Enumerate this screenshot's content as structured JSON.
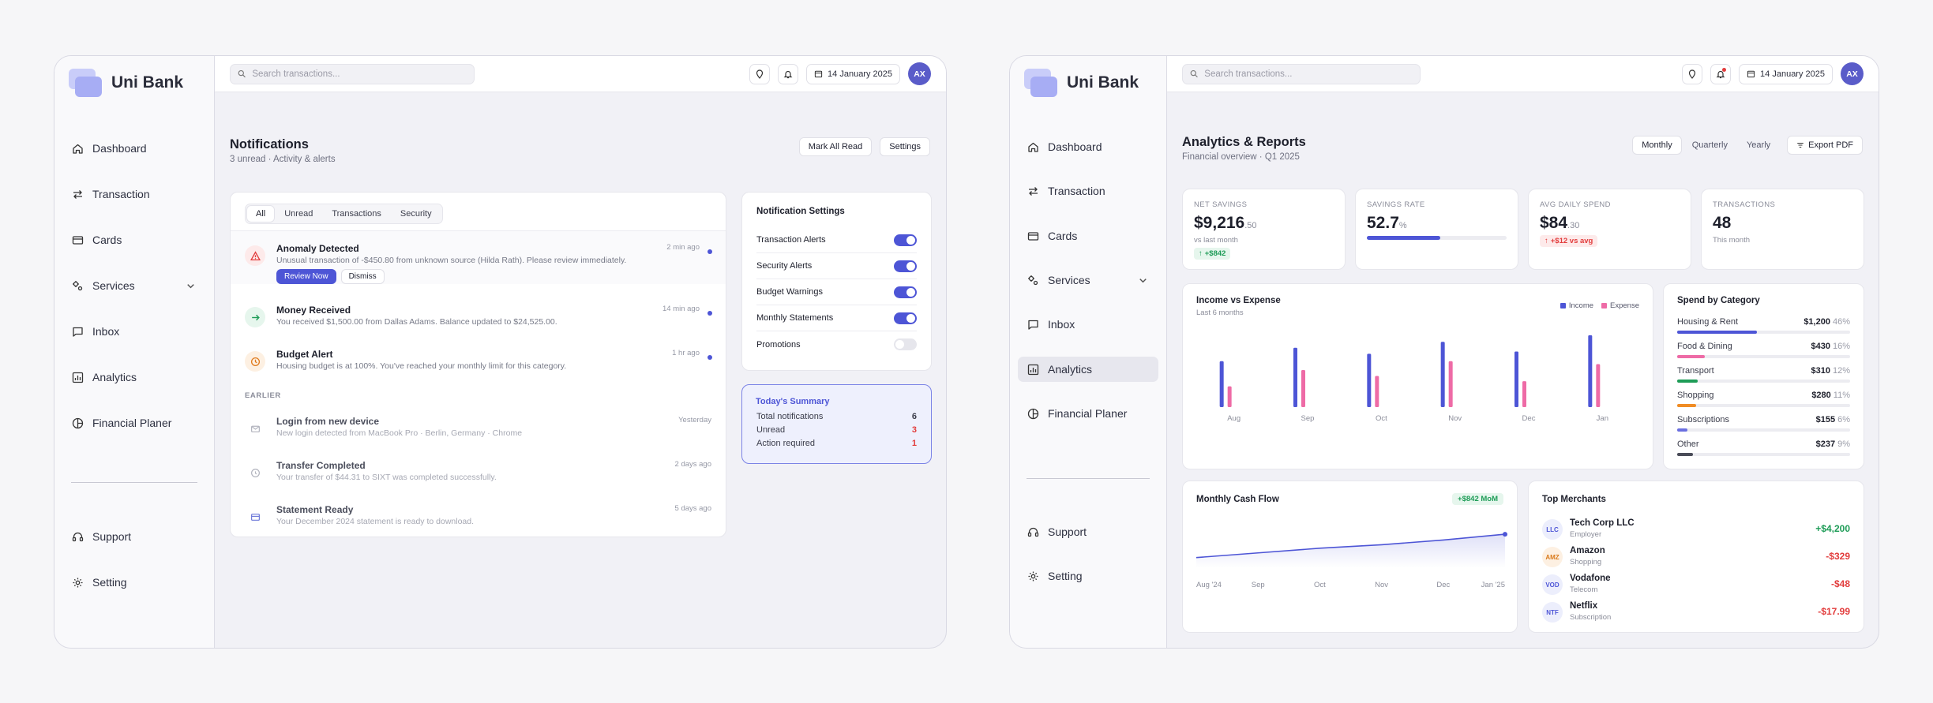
{
  "brand": "Uni Bank",
  "colors": {
    "accent": "#4d55d6",
    "income": "#4d55d6",
    "expense": "#ee6ba6",
    "positive": "#1e9c57",
    "negative": "#e23c3c"
  },
  "nav": [
    {
      "label": "Dashboard",
      "icon": "home-icon"
    },
    {
      "label": "Transaction",
      "icon": "transfer-icon"
    },
    {
      "label": "Cards",
      "icon": "card-icon"
    },
    {
      "label": "Services",
      "icon": "services-icon"
    },
    {
      "label": "Inbox",
      "icon": "inbox-icon"
    },
    {
      "label": "Analytics",
      "icon": "analytics-icon"
    },
    {
      "label": "Financial Planer",
      "icon": "pie-icon"
    }
  ],
  "footer_nav": [
    {
      "label": "Support",
      "icon": "headset-icon"
    },
    {
      "label": "Setting",
      "icon": "gear-icon"
    }
  ],
  "search": {
    "placeholder": "Search transactions..."
  },
  "date": "14 January 2025",
  "avatar": "AX",
  "notifications": {
    "title": "Notifications",
    "subtitle": "3 unread · Activity & alerts",
    "mark_all": "Mark All Read",
    "settings": "Settings",
    "tabs": [
      "All",
      "Unread",
      "Transactions",
      "Security"
    ],
    "items": [
      {
        "title": "Anomaly Detected",
        "desc": "Unusual transaction of -$450.80 from unknown source (Hilda Rath). Please review immediately.",
        "time": "2 min ago",
        "icon": "warning-icon"
      },
      {
        "title": "Money Received",
        "desc": "You received $1,500.00 from Dallas Adams. Balance updated to $24,525.00.",
        "time": "14 min ago",
        "icon": "arrow-right-icon"
      },
      {
        "title": "Budget Alert",
        "desc": "Housing budget is at 100%. You've reached your monthly limit for this category.",
        "time": "1 hr ago",
        "icon": "clock-icon"
      }
    ],
    "review": "Review Now",
    "dismiss": "Dismiss",
    "earlier_label": "EARLIER",
    "earlier": [
      {
        "title": "Login from new device",
        "desc": "New login detected from MacBook Pro · Berlin, Germany · Chrome",
        "time": "Yesterday",
        "icon": "mail-icon"
      },
      {
        "title": "Transfer Completed",
        "desc": "Your transfer of $44.31 to SIXT was completed successfully.",
        "time": "2 days ago",
        "icon": "check-circle-icon"
      },
      {
        "title": "Statement Ready",
        "desc": "Your December 2024 statement is ready to download.",
        "time": "5 days ago",
        "icon": "card-icon"
      }
    ],
    "settings_card": {
      "title": "Notification Settings",
      "rows": [
        {
          "label": "Transaction Alerts",
          "on": true
        },
        {
          "label": "Security Alerts",
          "on": true
        },
        {
          "label": "Budget Warnings",
          "on": true
        },
        {
          "label": "Monthly Statements",
          "on": true
        },
        {
          "label": "Promotions",
          "on": false
        }
      ]
    },
    "summary": {
      "title": "Today's Summary",
      "rows": [
        {
          "label": "Total notifications",
          "value": "6"
        },
        {
          "label": "Unread",
          "value": "3"
        },
        {
          "label": "Action required",
          "value": "1"
        }
      ]
    }
  },
  "analytics": {
    "title": "Analytics & Reports",
    "subtitle": "Financial overview · Q1 2025",
    "periods": [
      "Monthly",
      "Quarterly",
      "Yearly"
    ],
    "export": "Export PDF",
    "stats": [
      {
        "label": "NET SAVINGS",
        "value": "$9,216",
        "small": ".50",
        "note": "vs last month",
        "badge": "+$842"
      },
      {
        "label": "SAVINGS RATE",
        "value": "52.7",
        "small": "%",
        "progress": 0.527
      },
      {
        "label": "AVG DAILY SPEND",
        "value": "$84",
        "small": ".30",
        "badge": "+$12 vs avg"
      },
      {
        "label": "TRANSACTIONS",
        "value": "48",
        "note": "This month"
      }
    ],
    "income_expense": {
      "title": "Income vs Expense",
      "subtitle": "Last 6 months",
      "legend": [
        "Income",
        "Expense"
      ]
    },
    "cashflow": {
      "title": "Monthly Cash Flow",
      "badge": "+$842 MoM"
    },
    "categories": {
      "title": "Spend by Category",
      "items": [
        {
          "name": "Housing & Rent",
          "value": "$1,200",
          "pct": "46%",
          "frac": 0.46,
          "color": "#4d55d6"
        },
        {
          "name": "Food & Dining",
          "value": "$430",
          "pct": "16%",
          "frac": 0.16,
          "color": "#ee6ba6"
        },
        {
          "name": "Transport",
          "value": "$310",
          "pct": "12%",
          "frac": 0.12,
          "color": "#1e9c57"
        },
        {
          "name": "Shopping",
          "value": "$280",
          "pct": "11%",
          "frac": 0.11,
          "color": "#f08c24"
        },
        {
          "name": "Subscriptions",
          "value": "$155",
          "pct": "6%",
          "frac": 0.06,
          "color": "#6a6fe0"
        },
        {
          "name": "Other",
          "value": "$237",
          "pct": "9%",
          "frac": 0.09,
          "color": "#4a4c58"
        }
      ]
    },
    "merchants": {
      "title": "Top Merchants",
      "items": [
        {
          "logo": "LLC",
          "name": "Tech Corp LLC",
          "sub": "Employer",
          "value": "+$4,200",
          "pos": true,
          "bg": "#eceefc",
          "fg": "#4d55d6"
        },
        {
          "logo": "AMZ",
          "name": "Amazon",
          "sub": "Shopping",
          "value": "-$329",
          "pos": false,
          "bg": "#fdf0e2",
          "fg": "#d9791a"
        },
        {
          "logo": "VOD",
          "name": "Vodafone",
          "sub": "Telecom",
          "value": "-$48",
          "pos": false,
          "bg": "#eceefc",
          "fg": "#4d55d6"
        },
        {
          "logo": "NTF",
          "name": "Netflix",
          "sub": "Subscription",
          "value": "-$17.99",
          "pos": false,
          "bg": "#eceefc",
          "fg": "#4d55d6"
        }
      ]
    }
  },
  "chart_data": [
    {
      "type": "bar",
      "categories": [
        "Aug",
        "Sep",
        "Oct",
        "Nov",
        "Dec",
        "Jan"
      ],
      "series": [
        {
          "name": "Income",
          "values": [
            62,
            80,
            72,
            88,
            75,
            97
          ]
        },
        {
          "name": "Expense",
          "values": [
            28,
            50,
            42,
            62,
            35,
            58
          ]
        }
      ],
      "title": "Income vs Expense",
      "subtitle": "Last 6 months",
      "ylim": [
        0,
        100
      ],
      "grid": false,
      "legend": "top-right"
    },
    {
      "type": "area",
      "x": [
        "Aug '24",
        "Sep",
        "Oct",
        "Nov",
        "Dec",
        "Jan '25"
      ],
      "y": [
        18,
        26,
        34,
        40,
        48,
        58
      ],
      "title": "Monthly Cash Flow",
      "ylim": [
        0,
        100
      ],
      "grid": false
    }
  ]
}
